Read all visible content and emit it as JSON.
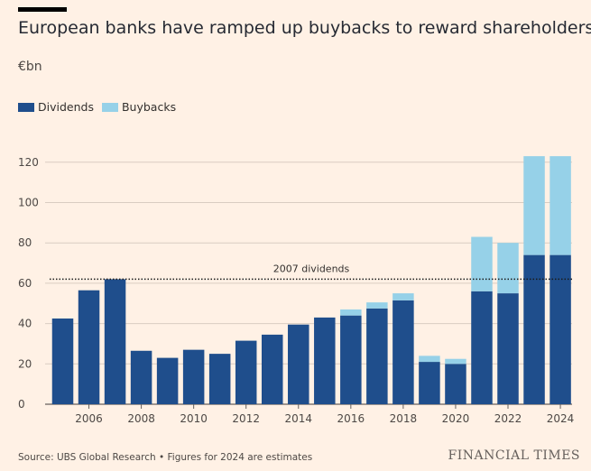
{
  "header": {
    "title": "European banks have ramped up buybacks to reward shareholders",
    "unit": "€bn"
  },
  "legend": [
    {
      "label": "Dividends",
      "color": "#1F4E8C"
    },
    {
      "label": "Buybacks",
      "color": "#96D1E8"
    }
  ],
  "footer": {
    "source": "Source: UBS Global Research • Figures for 2024 are estimates",
    "brand": "FINANCIAL TIMES"
  },
  "chart_data": {
    "type": "bar",
    "stacked": true,
    "title": "European banks have ramped up buybacks to reward shareholders",
    "ylabel": "€bn",
    "xlabel": "",
    "ylim": [
      0,
      130
    ],
    "yticks": [
      0,
      20,
      40,
      60,
      80,
      100,
      120
    ],
    "categories": [
      "2005",
      "2006",
      "2007",
      "2008",
      "2009",
      "2010",
      "2011",
      "2012",
      "2013",
      "2014",
      "2015",
      "2016",
      "2017",
      "2018",
      "2019",
      "2020",
      "2021",
      "2022",
      "2023",
      "2024"
    ],
    "xtick_labels": [
      "2006",
      "2008",
      "2010",
      "2012",
      "2014",
      "2016",
      "2018",
      "2020",
      "2022",
      "2024"
    ],
    "series": [
      {
        "name": "Dividends",
        "color": "#1F4E8C",
        "values": [
          42.5,
          56.5,
          62,
          26.5,
          23,
          27,
          25,
          31.5,
          34.5,
          39.5,
          43,
          44,
          47.5,
          51.5,
          21,
          20,
          56,
          55,
          74,
          74
        ]
      },
      {
        "name": "Buybacks",
        "color": "#96D1E8",
        "values": [
          0,
          0,
          0,
          0,
          0,
          0,
          0,
          0,
          0,
          0,
          0,
          3,
          3,
          3.5,
          3,
          2.5,
          27,
          25,
          49,
          49
        ]
      }
    ],
    "reference_line": {
      "label": "2007 dividends",
      "value": 62
    },
    "grid": true
  }
}
